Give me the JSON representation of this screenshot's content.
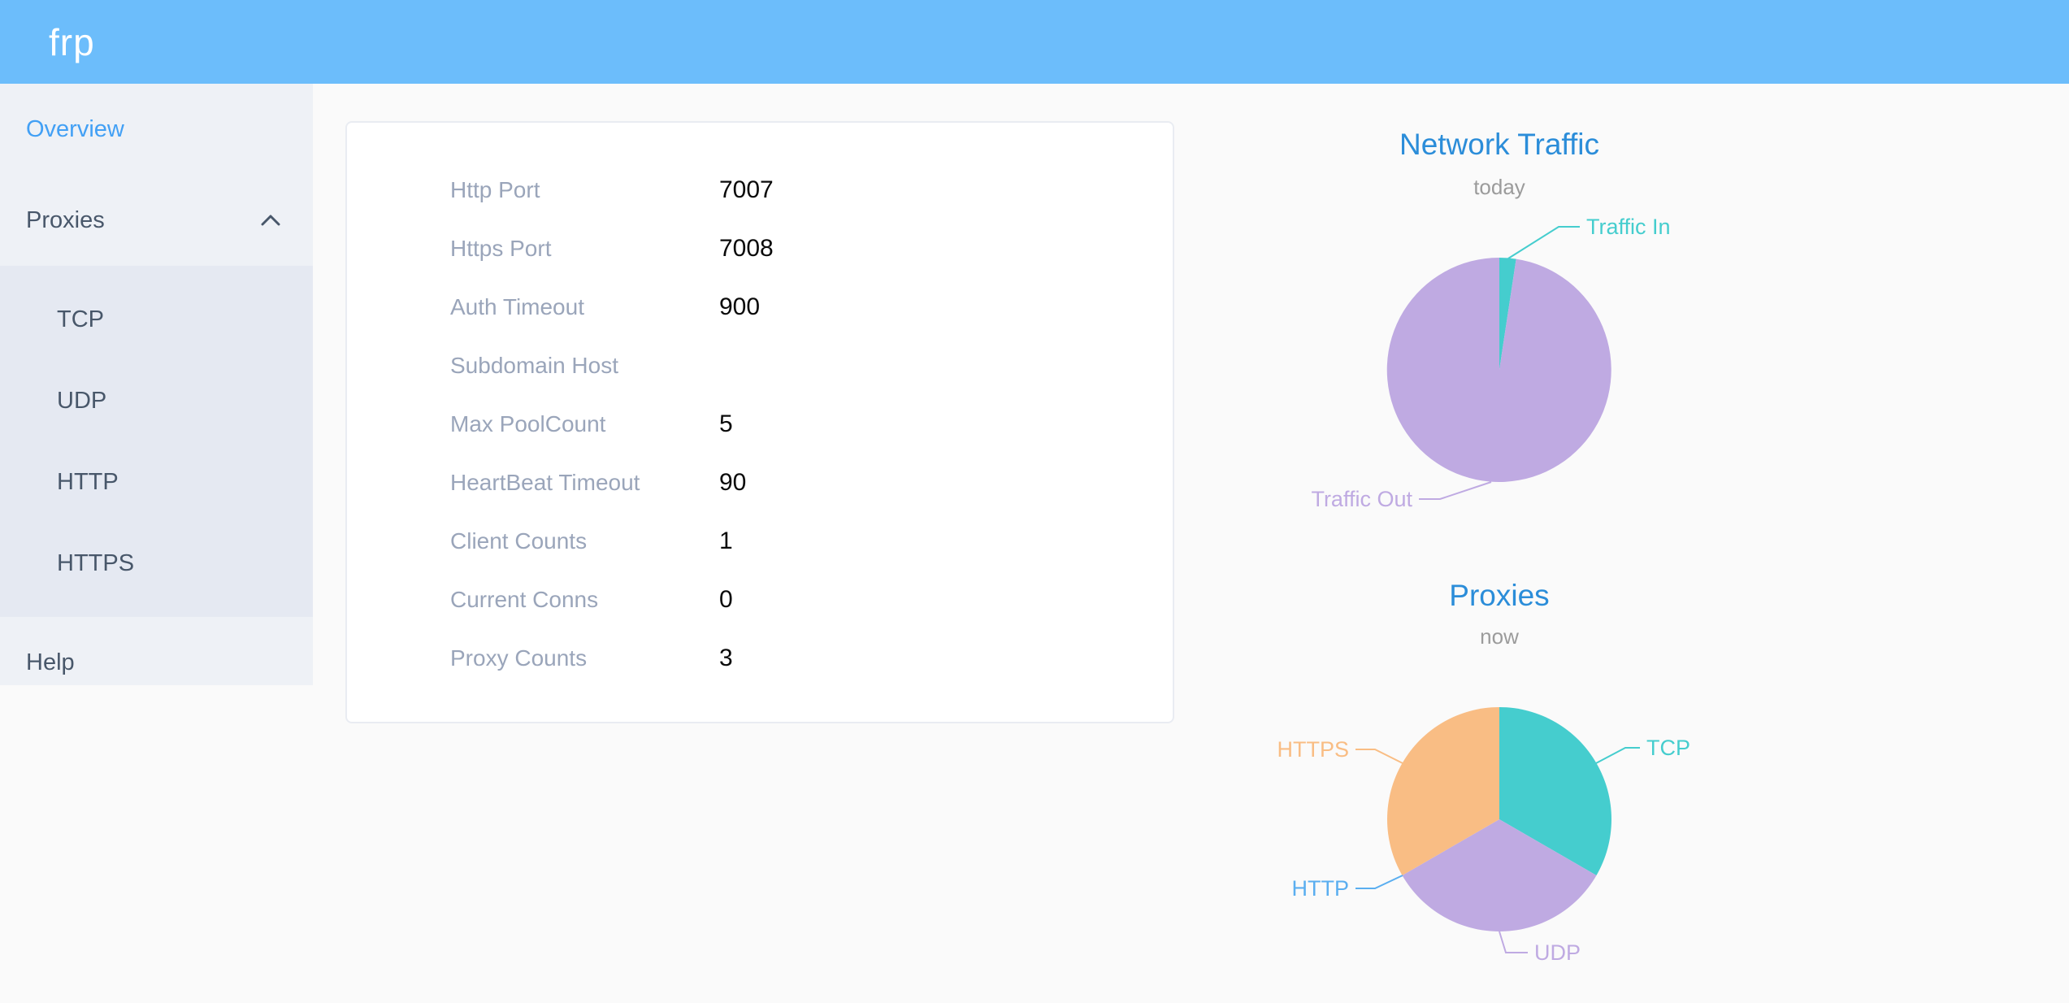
{
  "header": {
    "logo": "frp"
  },
  "sidebar": {
    "overview_label": "Overview",
    "proxies_label": "Proxies",
    "proxies_children": [
      "TCP",
      "UDP",
      "HTTP",
      "HTTPS"
    ],
    "help_label": "Help"
  },
  "overview_card": {
    "rows": [
      {
        "label": "Http Port",
        "value": "7007"
      },
      {
        "label": "Https Port",
        "value": "7008"
      },
      {
        "label": "Auth Timeout",
        "value": "900"
      },
      {
        "label": "Subdomain Host",
        "value": ""
      },
      {
        "label": "Max PoolCount",
        "value": "5"
      },
      {
        "label": "HeartBeat Timeout",
        "value": "90"
      },
      {
        "label": "Client Counts",
        "value": "1"
      },
      {
        "label": "Current Conns",
        "value": "0"
      },
      {
        "label": "Proxy Counts",
        "value": "3"
      }
    ]
  },
  "chart_data": [
    {
      "type": "pie",
      "title": "Network Traffic",
      "subtitle": "today",
      "value_basis": "percent estimated from slice angles (no numeric labels shown)",
      "legend_position": "callout-labels",
      "slices": [
        {
          "name": "Traffic In",
          "value": 2.4,
          "color": "#45cdce"
        },
        {
          "name": "Traffic Out",
          "value": 97.6,
          "color": "#bfaae2"
        }
      ]
    },
    {
      "type": "pie",
      "title": "Proxies",
      "subtitle": "now",
      "value_basis": "proxy counts",
      "legend_position": "callout-labels",
      "slices": [
        {
          "name": "TCP",
          "value": 1,
          "color": "#45cdce"
        },
        {
          "name": "UDP",
          "value": 1,
          "color": "#bfaae2"
        },
        {
          "name": "HTTP",
          "value": 0,
          "color": "#5aaef0"
        },
        {
          "name": "HTTPS",
          "value": 1,
          "color": "#f9bd84"
        }
      ]
    }
  ],
  "colors": {
    "header_bg": "#6cbdfb",
    "sidebar_bg": "#eef1f6",
    "submenu_bg": "#e5e9f2",
    "sidebar_text": "#48576a",
    "active_item": "#42a0f5",
    "card_label": "#9aa5ba",
    "chart_title": "#2b8dd9",
    "chart_subtitle": "#9b9b9b"
  }
}
